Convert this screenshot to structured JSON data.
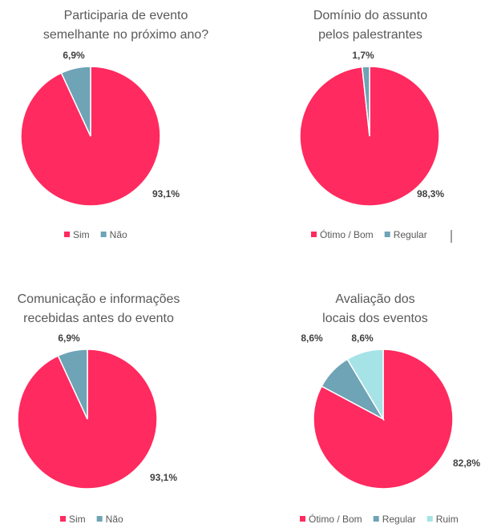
{
  "colors": {
    "primary": "#FF2A5F",
    "secondary": "#6FA3B6",
    "tertiary": "#A6E3E6"
  },
  "chart_data": [
    {
      "type": "pie",
      "title": [
        "Participaria de evento",
        "semelhante no próximo ano?"
      ],
      "categories": [
        "Sim",
        "Não"
      ],
      "values": [
        93.1,
        6.9
      ],
      "labels": [
        "93,1%",
        "6,9%"
      ],
      "legend": "bottom"
    },
    {
      "type": "pie",
      "title": [
        "Domínio do assunto",
        "pelos palestrantes"
      ],
      "categories": [
        "Ótimo / Bom",
        "Regular"
      ],
      "values": [
        98.3,
        1.7
      ],
      "labels": [
        "98,3%",
        "1,7%"
      ],
      "legend": "bottom"
    },
    {
      "type": "pie",
      "title": [
        "Comunicação e informações",
        "recebidas antes do evento"
      ],
      "categories": [
        "Sim",
        "Não"
      ],
      "values": [
        93.1,
        6.9
      ],
      "labels": [
        "93,1%",
        "6,9%"
      ],
      "legend": "bottom"
    },
    {
      "type": "pie",
      "title": [
        "Avaliação  dos",
        "locais dos eventos"
      ],
      "categories": [
        "Ótimo / Bom",
        "Regular",
        "Ruim"
      ],
      "values": [
        82.8,
        8.6,
        8.6
      ],
      "labels": [
        "82,8%",
        "8,6%",
        "8,6%"
      ],
      "legend": "bottom"
    }
  ]
}
